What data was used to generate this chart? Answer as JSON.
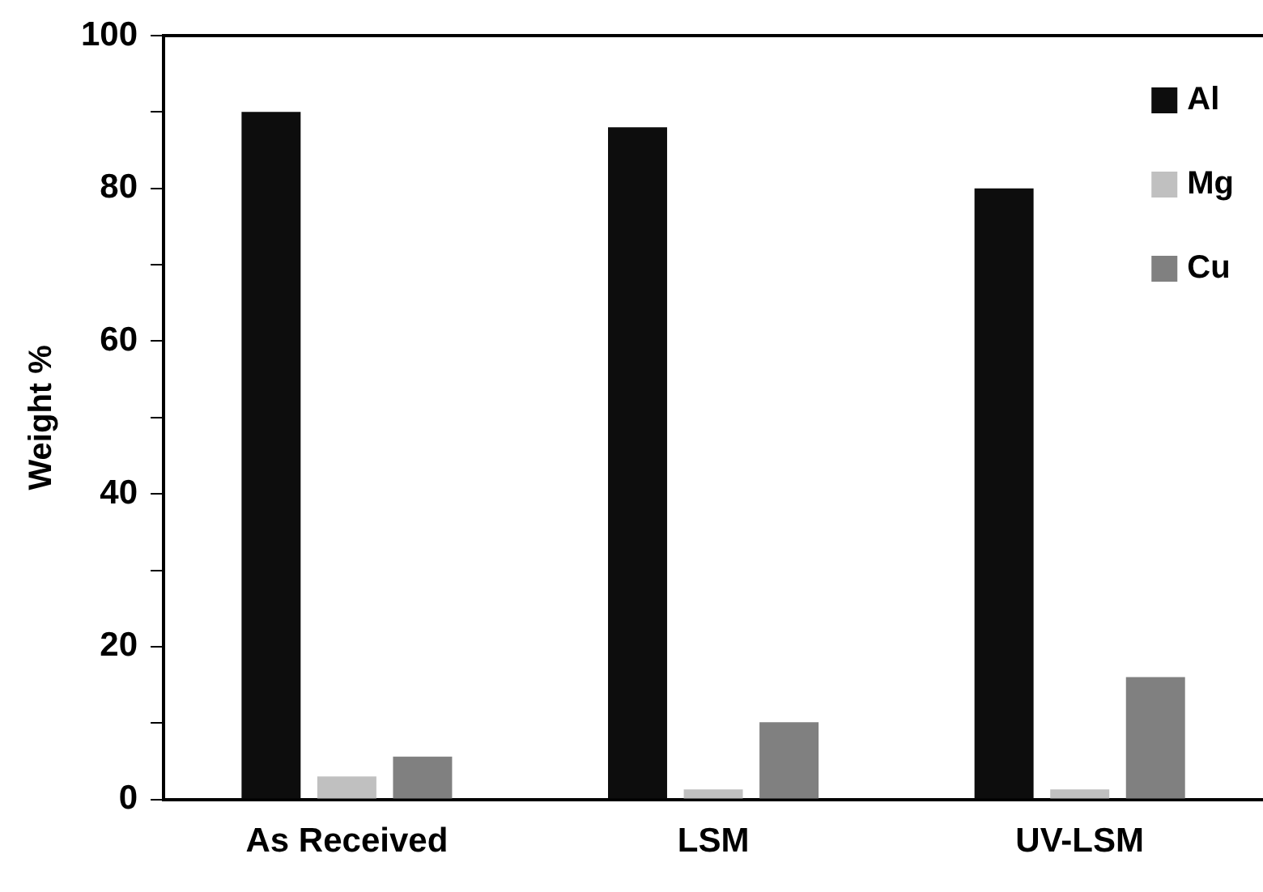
{
  "chart_data": {
    "type": "bar",
    "ylabel": "Weight %",
    "categories": [
      "As Received",
      "LSM",
      "UV-LSM"
    ],
    "series": [
      {
        "name": "Al",
        "color": "#0d0d0d",
        "values": [
          90,
          88,
          80
        ]
      },
      {
        "name": "Mg",
        "color": "#c0c0c0",
        "values": [
          3,
          1.3,
          1.3
        ]
      },
      {
        "name": "Cu",
        "color": "#808080",
        "values": [
          5.6,
          10.1,
          16
        ]
      }
    ],
    "ylim": [
      0,
      100
    ],
    "yticks": [
      0,
      {
        "value": 10,
        "label": null
      },
      20,
      {
        "value": 30,
        "label": null
      },
      40,
      {
        "value": 50,
        "label": null
      },
      60,
      {
        "value": 70,
        "label": null
      },
      80,
      {
        "value": 90,
        "label": null
      },
      100
    ],
    "grid": false,
    "legend": "top right"
  }
}
